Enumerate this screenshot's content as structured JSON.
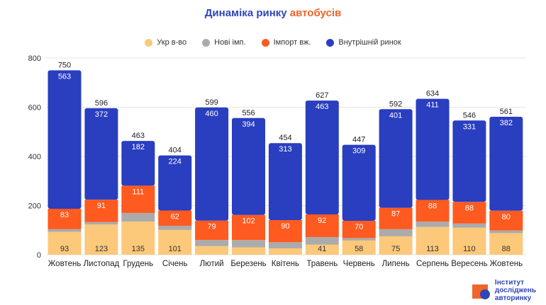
{
  "title_part1": "Динаміка ринку",
  "title_part2": "автобусів",
  "logo": {
    "lines": [
      "Інститут",
      "досліджень",
      "авторинку"
    ]
  },
  "chart_data": {
    "type": "bar",
    "stacked": true,
    "title": "Динаміка ринку автобусів",
    "categories": [
      "Жовтень",
      "Листопад",
      "Грудень",
      "Січень",
      "Лютий",
      "Березень",
      "Квітень",
      "Травень",
      "Червень",
      "Липень",
      "Серпень",
      "Вересень",
      "Жовтень"
    ],
    "totals": [
      750,
      596,
      463,
      404,
      599,
      556,
      454,
      627,
      447,
      592,
      634,
      546,
      561
    ],
    "series": [
      {
        "name": "Укр в-во",
        "color": "#fcc87a",
        "values": [
          93,
          123,
          135,
          101,
          35,
          30,
          26,
          41,
          58,
          75,
          113,
          110,
          88
        ]
      },
      {
        "name": "Нові імп.",
        "color": "#ababab",
        "values": [
          11,
          10,
          35,
          17,
          25,
          30,
          25,
          31,
          10,
          29,
          22,
          17,
          11
        ]
      },
      {
        "name": "Імпорт вж.",
        "color": "#ff5a1f",
        "values": [
          83,
          91,
          111,
          62,
          79,
          102,
          90,
          92,
          70,
          87,
          88,
          88,
          80
        ]
      },
      {
        "name": "Внутрішній ринок",
        "color": "#2a3ec0",
        "values": [
          563,
          372,
          182,
          224,
          460,
          394,
          313,
          463,
          309,
          401,
          411,
          331,
          382
        ]
      }
    ],
    "ylim": [
      0,
      800
    ],
    "yticks": [
      0,
      200,
      400,
      600,
      800
    ],
    "grid": true,
    "legend": "top"
  }
}
